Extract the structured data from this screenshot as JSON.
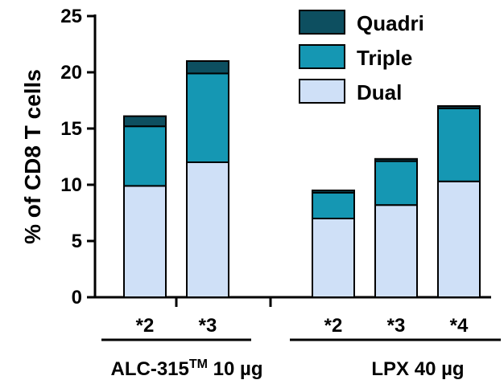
{
  "chart_data": {
    "type": "bar",
    "stacked": true,
    "ylabel": "% of CD8 T cells",
    "ylim": [
      0,
      25
    ],
    "yticks": [
      0,
      5,
      10,
      15,
      20,
      25
    ],
    "groups": [
      {
        "label": "ALC-315",
        "label_sup": "TM",
        "label_tail": " 10 µg",
        "categories": [
          "*2",
          "*3"
        ]
      },
      {
        "label": "LPX 40 µg",
        "label_sup": "",
        "label_tail": "",
        "categories": [
          "*2",
          "*3",
          "*4"
        ]
      }
    ],
    "categories": [
      "*2",
      "*3",
      "*2",
      "*3",
      "*4"
    ],
    "series": [
      {
        "name": "Dual",
        "color": "#cfe0f7",
        "values": [
          9.9,
          12.0,
          7.0,
          8.2,
          10.3
        ]
      },
      {
        "name": "Triple",
        "color": "#1597b3",
        "values": [
          5.3,
          7.9,
          2.3,
          3.9,
          6.5
        ]
      },
      {
        "name": "Quadri",
        "color": "#0d4f60",
        "values": [
          0.9,
          1.1,
          0.2,
          0.2,
          0.2
        ]
      }
    ],
    "legend_position": "top-right"
  }
}
